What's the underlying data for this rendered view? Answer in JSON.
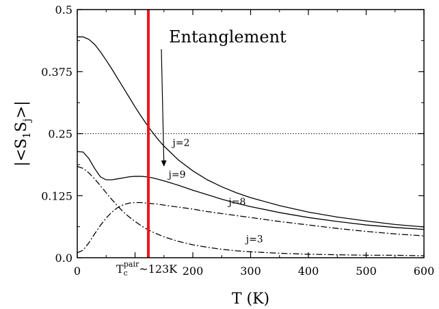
{
  "chart_data": {
    "type": "line",
    "title": "",
    "xlabel": "T (K)",
    "ylabel_main": "|<S",
    "ylabel_sub1": "1",
    "ylabel_mid": "S",
    "ylabel_sub2": "j",
    "ylabel_end": ">|",
    "xlim": [
      0,
      600
    ],
    "ylim": [
      0,
      0.5
    ],
    "x_ticks": [
      0,
      100,
      200,
      300,
      400,
      500,
      600
    ],
    "x_tick_labels": [
      "0",
      "",
      "200",
      "300",
      "400",
      "500",
      "600"
    ],
    "y_ticks": [
      0,
      0.125,
      0.25,
      0.375,
      0.5
    ],
    "y_tick_labels": [
      "0.0",
      "0.125",
      "0.25",
      "0.375",
      "0.5"
    ],
    "grid": false,
    "reference_line": {
      "y": 0.25,
      "style": "dotted"
    },
    "critical_line": {
      "x": 123,
      "color": "#e8141c",
      "label_main": "T",
      "label_sub": "c",
      "label_sup": "pair",
      "label_rest": "~123K"
    },
    "annotation": {
      "text": "Entanglement",
      "arrow_to": [
        150,
        0.185
      ]
    },
    "series": [
      {
        "name": "j=2",
        "style": "solid",
        "label_at": [
          165,
          0.225
        ],
        "x": [
          0,
          10,
          20,
          30,
          40,
          50,
          60,
          70,
          80,
          90,
          100,
          110,
          120,
          130,
          140,
          150,
          175,
          200,
          225,
          250,
          275,
          300,
          350,
          400,
          450,
          500,
          550,
          600
        ],
        "y": [
          0.445,
          0.445,
          0.44,
          0.43,
          0.415,
          0.398,
          0.38,
          0.361,
          0.342,
          0.323,
          0.304,
          0.286,
          0.269,
          0.253,
          0.238,
          0.225,
          0.197,
          0.175,
          0.157,
          0.143,
          0.131,
          0.121,
          0.105,
          0.092,
          0.082,
          0.074,
          0.067,
          0.062
        ]
      },
      {
        "name": "j=9",
        "style": "solid",
        "label_at": [
          158,
          0.161
        ],
        "x": [
          0,
          10,
          20,
          30,
          40,
          50,
          60,
          70,
          80,
          90,
          100,
          110,
          120,
          130,
          140,
          150,
          175,
          200,
          225,
          250,
          275,
          300,
          350,
          400,
          450,
          500,
          550,
          600
        ],
        "y": [
          0.214,
          0.213,
          0.2,
          0.18,
          0.163,
          0.157,
          0.157,
          0.159,
          0.161,
          0.163,
          0.164,
          0.164,
          0.163,
          0.161,
          0.158,
          0.155,
          0.146,
          0.136,
          0.127,
          0.118,
          0.11,
          0.103,
          0.091,
          0.081,
          0.073,
          0.066,
          0.061,
          0.057
        ]
      },
      {
        "name": "j=8",
        "style": "dashdot",
        "label_at": [
          262,
          0.106
        ],
        "x": [
          0,
          10,
          20,
          30,
          40,
          50,
          60,
          70,
          80,
          90,
          100,
          110,
          120,
          130,
          140,
          150,
          175,
          200,
          225,
          250,
          275,
          300,
          350,
          400,
          450,
          500,
          550,
          600
        ],
        "y": [
          0.01,
          0.015,
          0.03,
          0.048,
          0.065,
          0.08,
          0.092,
          0.101,
          0.107,
          0.11,
          0.111,
          0.111,
          0.11,
          0.109,
          0.108,
          0.106,
          0.102,
          0.098,
          0.093,
          0.089,
          0.085,
          0.081,
          0.073,
          0.066,
          0.059,
          0.053,
          0.048,
          0.044
        ]
      },
      {
        "name": "j=3",
        "style": "dashdot",
        "label_at": [
          292,
          0.031
        ],
        "x": [
          0,
          10,
          20,
          30,
          40,
          50,
          60,
          70,
          80,
          90,
          100,
          110,
          120,
          130,
          140,
          150,
          175,
          200,
          225,
          250,
          275,
          300,
          350,
          400,
          450,
          500,
          550,
          600
        ],
        "y": [
          0.184,
          0.18,
          0.171,
          0.159,
          0.145,
          0.131,
          0.117,
          0.104,
          0.092,
          0.082,
          0.073,
          0.065,
          0.058,
          0.052,
          0.047,
          0.042,
          0.033,
          0.026,
          0.021,
          0.017,
          0.014,
          0.012,
          0.009,
          0.007,
          0.006,
          0.005,
          0.005,
          0.004
        ]
      }
    ]
  }
}
